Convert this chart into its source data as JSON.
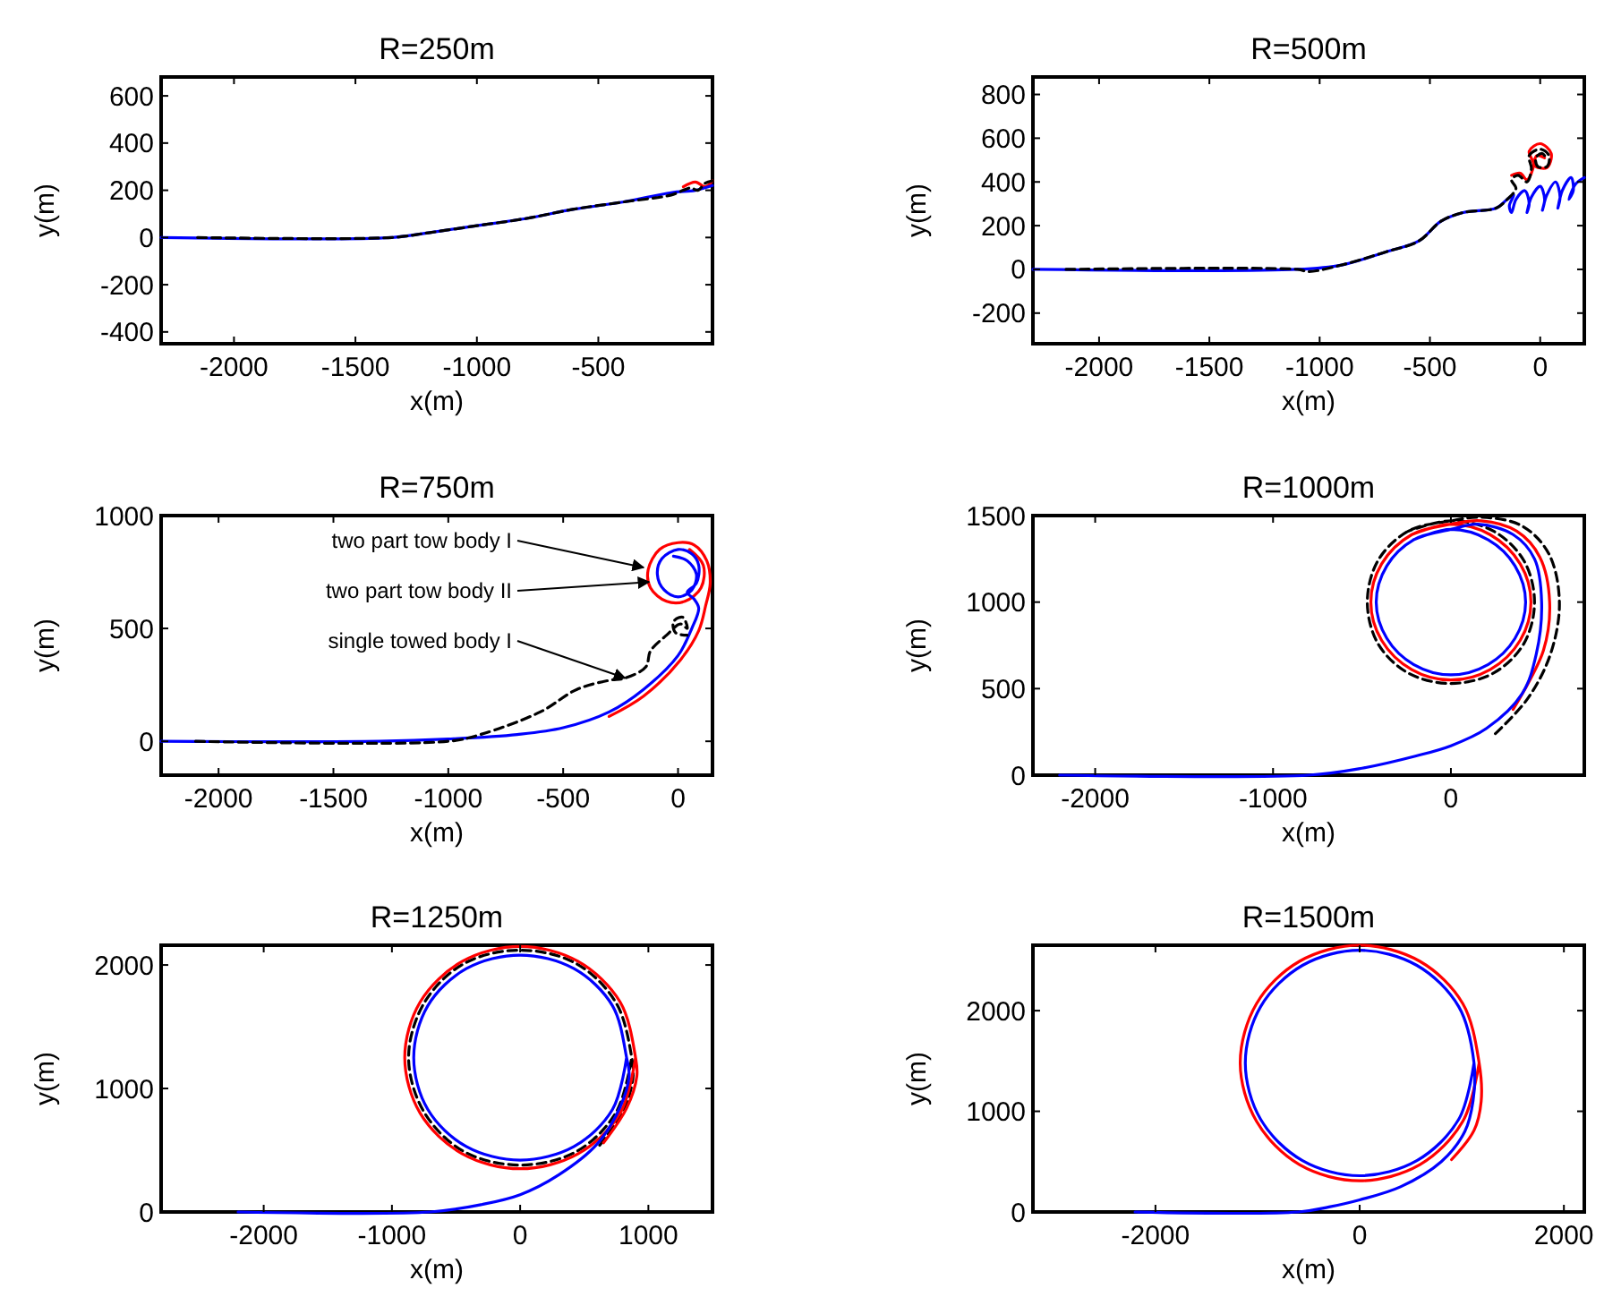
{
  "chart_data": [
    {
      "type": "line",
      "title": "R=250m",
      "xlabel": "x(m)",
      "ylabel": "y(m)",
      "xlim": [
        -2300,
        -30
      ],
      "ylim": [
        -450,
        680
      ],
      "xticks": [
        -2000,
        -1500,
        -1000,
        -500
      ],
      "yticks": [
        -400,
        -200,
        0,
        200,
        400,
        600
      ],
      "series": [
        {
          "color": "#ff0000",
          "x": [
            -150,
            -100,
            -60,
            -30
          ],
          "values": [
            215,
            235,
            215,
            240
          ]
        },
        {
          "color": "#0000ff",
          "x": [
            -2300,
            -1350,
            -1200,
            -1000,
            -800,
            -600,
            -400,
            -200,
            -100,
            -30
          ],
          "values": [
            0,
            0,
            20,
            50,
            80,
            120,
            150,
            190,
            200,
            220
          ]
        },
        {
          "color": "#000000",
          "line_style": "dashed",
          "x": [
            -2150,
            -1350,
            -1200,
            -1000,
            -800,
            -600,
            -400,
            -200,
            -150,
            -120,
            -90,
            -60,
            -30
          ],
          "values": [
            0,
            0,
            20,
            50,
            80,
            120,
            150,
            180,
            200,
            210,
            200,
            230,
            240
          ]
        }
      ]
    },
    {
      "type": "line",
      "title": "R=500m",
      "xlabel": "x(m)",
      "ylabel": "y(m)",
      "xlim": [
        -2300,
        200
      ],
      "ylim": [
        -340,
        880
      ],
      "xticks": [
        -2000,
        -1500,
        -1000,
        -500,
        0
      ],
      "yticks": [
        -200,
        0,
        200,
        400,
        600,
        800
      ],
      "series": [
        {
          "color": "#ff0000",
          "x": [
            -130,
            -90,
            -60,
            -30,
            -50,
            0,
            50,
            30,
            -25,
            -15,
            20
          ],
          "values": [
            430,
            440,
            410,
            480,
            540,
            575,
            530,
            465,
            475,
            520,
            510
          ]
        },
        {
          "color": "#0000ff",
          "x": [
            -2300,
            -1100,
            -900,
            -700,
            -550,
            -450,
            -350,
            -200,
            -150,
            -120,
            -140,
            -130,
            -110,
            -70,
            -50,
            -60,
            -40,
            0,
            20,
            10,
            30,
            70,
            90,
            80,
            100,
            140,
            150,
            130,
            160,
            200
          ],
          "values": [
            0,
            0,
            20,
            80,
            130,
            220,
            260,
            280,
            320,
            340,
            290,
            260,
            320,
            360,
            300,
            260,
            330,
            380,
            320,
            270,
            340,
            400,
            330,
            280,
            360,
            420,
            360,
            320,
            390,
            420
          ]
        },
        {
          "color": "#000000",
          "line_style": "dashed",
          "x": [
            -2150,
            -1100,
            -1050,
            -900,
            -700,
            -550,
            -450,
            -350,
            -200,
            -150,
            -110,
            -130,
            -100,
            -60,
            -40,
            -50,
            0,
            40,
            30,
            -10,
            -20,
            10,
            30
          ],
          "values": [
            0,
            0,
            -10,
            20,
            80,
            130,
            220,
            260,
            280,
            320,
            370,
            410,
            430,
            400,
            460,
            520,
            550,
            520,
            470,
            470,
            510,
            530,
            500
          ]
        }
      ]
    },
    {
      "type": "line",
      "title": "R=750m",
      "xlabel": "x(m)",
      "ylabel": "y(m)",
      "xlim": [
        -2250,
        150
      ],
      "ylim": [
        -150,
        1000
      ],
      "xticks": [
        -2000,
        -1500,
        -1000,
        -500,
        0
      ],
      "yticks": [
        0,
        500,
        1000
      ],
      "annotations": [
        {
          "text": "two part tow body I",
          "x": -150,
          "y": 770
        },
        {
          "text": "two part tow body II",
          "x": -126,
          "y": 706
        },
        {
          "text": "single towed body I",
          "x": -230,
          "y": 280
        }
      ],
      "series": [
        {
          "color": "#ff0000",
          "x": [
            -300,
            -150,
            10,
            90,
            120,
            140,
            125,
            70,
            0,
            -80,
            -130,
            -120,
            -50,
            30,
            100,
            110,
            50
          ],
          "values": [
            110,
            200,
            360,
            490,
            600,
            700,
            800,
            870,
            880,
            850,
            760,
            680,
            620,
            620,
            680,
            780,
            850
          ]
        },
        {
          "color": "#0000ff",
          "x": [
            -2250,
            -1300,
            -1000,
            -700,
            -500,
            -300,
            -150,
            0,
            60,
            90,
            70,
            40,
            80,
            90,
            60,
            0,
            -70,
            -90,
            -60,
            0,
            60,
            80,
            40,
            -20
          ],
          "values": [
            0,
            0,
            10,
            30,
            60,
            130,
            230,
            380,
            500,
            590,
            630,
            660,
            700,
            780,
            830,
            850,
            810,
            740,
            670,
            640,
            670,
            740,
            800,
            820
          ]
        },
        {
          "color": "#000000",
          "line_style": "dashed",
          "x": [
            -2100,
            -1000,
            -860,
            -600,
            -440,
            -300,
            -230,
            -140,
            -120,
            -50,
            10,
            40,
            20,
            -20,
            -10,
            40
          ],
          "values": [
            0,
            0,
            30,
            130,
            230,
            270,
            280,
            330,
            400,
            470,
            520,
            500,
            550,
            530,
            480,
            470
          ]
        }
      ]
    },
    {
      "type": "line",
      "title": "R=1000m",
      "xlabel": "x(m)",
      "ylabel": "y(m)",
      "xlim": [
        -2350,
        750
      ],
      "ylim": [
        0,
        1500
      ],
      "xticks": [
        -2000,
        -1000,
        0
      ],
      "yticks": [
        0,
        500,
        1000,
        1500
      ],
      "series": [
        {
          "color": "#000000",
          "line_style": "dashed",
          "x": [
            250,
            430,
            560,
            610,
            550,
            400,
            180,
            0,
            -240,
            -410,
            -470,
            -410,
            -240,
            0,
            240,
            410,
            470,
            410,
            240,
            0,
            -240
          ],
          "values": [
            240,
            440,
            700,
            1000,
            1280,
            1440,
            1490,
            1470,
            1410,
            1240,
            1000,
            760,
            590,
            530,
            590,
            760,
            1000,
            1240,
            1410,
            1470,
            1410
          ]
        },
        {
          "color": "#ff0000",
          "x": [
            350,
            520,
            555,
            500,
            370,
            170,
            0,
            -220,
            -390,
            -450,
            -390,
            -220,
            0,
            220,
            390,
            450,
            390,
            220,
            0,
            -220
          ],
          "values": [
            380,
            720,
            1000,
            1260,
            1410,
            1470,
            1450,
            1390,
            1220,
            1000,
            780,
            610,
            550,
            610,
            780,
            1000,
            1220,
            1390,
            1450,
            1390
          ]
        },
        {
          "color": "#0000ff",
          "x": [
            -2200,
            -800,
            -500,
            -200,
            0,
            200,
            400,
            480,
            510,
            470,
            350,
            150,
            0,
            -210,
            -360,
            -420,
            -360,
            -210,
            0,
            210,
            360,
            420,
            360,
            210,
            0,
            -210
          ],
          "values": [
            0,
            0,
            40,
            110,
            170,
            270,
            470,
            700,
            1000,
            1250,
            1390,
            1450,
            1420,
            1360,
            1210,
            1000,
            790,
            640,
            580,
            640,
            790,
            1000,
            1210,
            1360,
            1420,
            1360
          ]
        }
      ]
    },
    {
      "type": "line",
      "title": "R=1250m",
      "xlabel": "x(m)",
      "ylabel": "y(m)",
      "xlim": [
        -2800,
        1500
      ],
      "ylim": [
        0,
        2160
      ],
      "xticks": [
        -2000,
        -1000,
        0,
        1000
      ],
      "yticks": [
        0,
        1000,
        2000
      ],
      "series": [
        {
          "color": "#000000",
          "line_style": "dashed",
          "x": [
            620,
            810,
            880,
            870,
            750,
            440,
            0,
            -440,
            -750,
            -870,
            -750,
            -440,
            0,
            440,
            750,
            870
          ],
          "values": [
            540,
            830,
            1090,
            1250,
            1690,
            2010,
            2120,
            2010,
            1690,
            1250,
            810,
            490,
            380,
            490,
            810,
            1250
          ]
        },
        {
          "color": "#ff0000",
          "x": [
            650,
            830,
            910,
            900,
            780,
            450,
            0,
            -450,
            -780,
            -900,
            -780,
            -450,
            0,
            450,
            780,
            900
          ],
          "values": [
            560,
            840,
            1100,
            1250,
            1700,
            2030,
            2150,
            2030,
            1700,
            1250,
            800,
            470,
            350,
            470,
            800,
            1250
          ]
        },
        {
          "color": "#0000ff",
          "x": [
            -2200,
            -700,
            -300,
            0,
            300,
            600,
            780,
            850,
            830,
            720,
            420,
            0,
            -420,
            -720,
            -830,
            -720,
            -420,
            0,
            420,
            720,
            830
          ],
          "values": [
            0,
            0,
            60,
            140,
            300,
            550,
            850,
            1100,
            1250,
            1670,
            1970,
            2080,
            1970,
            1670,
            1250,
            830,
            530,
            420,
            530,
            830,
            1250
          ]
        }
      ]
    },
    {
      "type": "line",
      "title": "R=1500m",
      "xlabel": "x(m)",
      "ylabel": "y(m)",
      "xlim": [
        -3200,
        2200
      ],
      "ylim": [
        0,
        2650
      ],
      "xticks": [
        -2000,
        0,
        2000
      ],
      "yticks": [
        0,
        1000,
        2000
      ],
      "series": [
        {
          "color": "#ff0000",
          "x": [
            900,
            1120,
            1190,
            1170,
            1010,
            590,
            0,
            -590,
            -1010,
            -1170,
            -1010,
            -590,
            0,
            590,
            1010,
            1170
          ],
          "values": [
            520,
            810,
            1100,
            1480,
            2070,
            2490,
            2650,
            2490,
            2070,
            1480,
            900,
            470,
            310,
            470,
            900,
            1480
          ]
        },
        {
          "color": "#0000ff",
          "x": [
            -2200,
            -600,
            -300,
            0,
            400,
            800,
            1030,
            1110,
            1120,
            970,
            560,
            0,
            -560,
            -970,
            -1120,
            -970,
            -560,
            0,
            560,
            970,
            1120
          ],
          "values": [
            0,
            0,
            50,
            120,
            250,
            500,
            800,
            1100,
            1480,
            2040,
            2450,
            2600,
            2450,
            2040,
            1480,
            920,
            510,
            360,
            510,
            920,
            1480
          ]
        }
      ]
    }
  ]
}
